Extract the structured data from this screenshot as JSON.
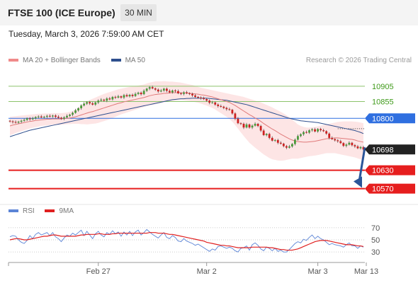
{
  "header": {
    "title": "FTSE 100 (ICE Europe)",
    "timeframe": "30 MIN"
  },
  "timestamp": "Tuesday, March 3, 2026 7:59:00 AM CET",
  "legend": {
    "items": [
      {
        "label": "MA 20 + Bollinger Bands",
        "color": "#f08a8a"
      },
      {
        "label": "MA 50",
        "color": "#2e4f8e"
      }
    ],
    "credit": "Research © 2026 Trading Central"
  },
  "rsi_legend": {
    "items": [
      {
        "label": "RSI",
        "color": "#5b84d6"
      },
      {
        "label": "9MA",
        "color": "#e02020"
      }
    ]
  },
  "chart_data": [
    {
      "type": "candlestick",
      "ylim": [
        10525,
        10965
      ],
      "x_tick_labels": [
        "Feb 27",
        "Mar 2",
        "Mar 3",
        "Mar 13"
      ],
      "x_tick_positions": [
        31,
        69,
        108,
        125
      ],
      "n_bars": 125,
      "levels": [
        {
          "value": 10905,
          "label": "10905",
          "kind": "target",
          "color": "#8cc36b",
          "text_color": "#3f9a1a"
        },
        {
          "value": 10855,
          "label": "10855",
          "kind": "target",
          "color": "#8cc36b",
          "text_color": "#3f9a1a"
        },
        {
          "value": 10800,
          "label": "10800",
          "kind": "pivot",
          "color": "#2f6fe0"
        },
        {
          "value": 10698,
          "label": "10698",
          "kind": "last-price",
          "color": "#222222"
        },
        {
          "value": 10630,
          "label": "10630",
          "kind": "target",
          "color": "#e61e1e"
        },
        {
          "value": 10570,
          "label": "10570",
          "kind": "target",
          "color": "#e61e1e"
        }
      ],
      "forecast_arrow": {
        "from": 10705,
        "to": 10575,
        "color": "#2a5599"
      },
      "close": [
        10790,
        10788,
        10786,
        10789,
        10792,
        10795,
        10800,
        10797,
        10800,
        10804,
        10806,
        10803,
        10805,
        10808,
        10806,
        10809,
        10805,
        10802,
        10799,
        10803,
        10808,
        10812,
        10818,
        10826,
        10833,
        10842,
        10848,
        10853,
        10849,
        10845,
        10852,
        10858,
        10861,
        10858,
        10865,
        10862,
        10870,
        10868,
        10872,
        10868,
        10876,
        10872,
        10877,
        10873,
        10880,
        10884,
        10879,
        10890,
        10897,
        10902,
        10898,
        10894,
        10888,
        10891,
        10897,
        10890,
        10885,
        10891,
        10889,
        10882,
        10880,
        10885,
        10882,
        10880,
        10875,
        10870,
        10868,
        10866,
        10863,
        10858,
        10851,
        10852,
        10845,
        10840,
        10838,
        10834,
        10830,
        10828,
        10816,
        10799,
        10784,
        10782,
        10770,
        10780,
        10770,
        10776,
        10782,
        10775,
        10760,
        10745,
        10749,
        10736,
        10727,
        10729,
        10720,
        10717,
        10709,
        10704,
        10708,
        10716,
        10730,
        10742,
        10748,
        10755,
        10753,
        10761,
        10764,
        10757,
        10765,
        10761,
        10758,
        10750,
        10736,
        10732,
        10728,
        10725,
        10719,
        10710,
        10714,
        10720,
        10712,
        10708,
        10702,
        10706,
        10698
      ],
      "ma20": [
        10775,
        10778,
        10780,
        10782,
        10784,
        10786,
        10788,
        10790,
        10791,
        10793,
        10794,
        10795,
        10796,
        10797,
        10797,
        10798,
        10798,
        10798,
        10798,
        10799,
        10800,
        10801,
        10803,
        10805,
        10808,
        10811,
        10814,
        10817,
        10820,
        10822,
        10825,
        10828,
        10831,
        10834,
        10837,
        10840,
        10843,
        10846,
        10849,
        10851,
        10854,
        10856,
        10858,
        10860,
        10862,
        10864,
        10866,
        10868,
        10871,
        10874,
        10876,
        10878,
        10879,
        10880,
        10882,
        10882,
        10883,
        10884,
        10884,
        10884,
        10884,
        10883,
        10883,
        10882,
        10881,
        10880,
        10879,
        10877,
        10876,
        10874,
        10872,
        10870,
        10867,
        10864,
        10861,
        10858,
        10855,
        10852,
        10847,
        10842,
        10836,
        10830,
        10824,
        10818,
        10812,
        10807,
        10801,
        10796,
        10790,
        10783,
        10777,
        10771,
        10765,
        10760,
        10754,
        10748,
        10743,
        10738,
        10733,
        10729,
        10726,
        10724,
        10723,
        10722,
        10722,
        10723,
        10724,
        10725,
        10727,
        10729,
        10731,
        10733,
        10734,
        10735,
        10736,
        10736,
        10735,
        10734,
        10733,
        10732,
        10731,
        10729,
        10726,
        10724,
        10722
      ],
      "bb_upper": [
        10805,
        10806,
        10807,
        10808,
        10809,
        10810,
        10811,
        10812,
        10813,
        10814,
        10815,
        10815,
        10816,
        10816,
        10816,
        10817,
        10817,
        10817,
        10817,
        10818,
        10819,
        10821,
        10824,
        10829,
        10835,
        10842,
        10849,
        10856,
        10860,
        10864,
        10868,
        10872,
        10876,
        10880,
        10883,
        10886,
        10889,
        10892,
        10895,
        10897,
        10899,
        10901,
        10903,
        10904,
        10906,
        10907,
        10909,
        10911,
        10914,
        10917,
        10919,
        10921,
        10921,
        10921,
        10922,
        10921,
        10920,
        10920,
        10919,
        10918,
        10917,
        10915,
        10913,
        10911,
        10909,
        10906,
        10903,
        10900,
        10898,
        10896,
        10894,
        10892,
        10890,
        10888,
        10886,
        10884,
        10882,
        10880,
        10878,
        10876,
        10874,
        10872,
        10870,
        10867,
        10864,
        10861,
        10858,
        10855,
        10852,
        10848,
        10844,
        10840,
        10836,
        10831,
        10826,
        10821,
        10816,
        10810,
        10804,
        10796,
        10788,
        10780,
        10775,
        10772,
        10770,
        10770,
        10771,
        10772,
        10774,
        10776,
        10778,
        10780,
        10782,
        10784,
        10786,
        10788,
        10789,
        10790,
        10790,
        10790,
        10790,
        10789,
        10788,
        10786,
        10784
      ],
      "bb_lower": [
        10745,
        10748,
        10752,
        10755,
        10758,
        10761,
        10764,
        10767,
        10769,
        10771,
        10773,
        10775,
        10776,
        10777,
        10778,
        10779,
        10779,
        10779,
        10779,
        10780,
        10781,
        10781,
        10782,
        10782,
        10782,
        10781,
        10781,
        10780,
        10781,
        10782,
        10783,
        10785,
        10788,
        10791,
        10794,
        10797,
        10801,
        10805,
        10809,
        10813,
        10816,
        10819,
        10822,
        10825,
        10828,
        10831,
        10834,
        10837,
        10840,
        10842,
        10844,
        10846,
        10848,
        10850,
        10852,
        10854,
        10856,
        10857,
        10858,
        10859,
        10860,
        10859,
        10858,
        10857,
        10855,
        10853,
        10851,
        10848,
        10845,
        10842,
        10838,
        10834,
        10829,
        10823,
        10817,
        10811,
        10805,
        10798,
        10789,
        10778,
        10766,
        10754,
        10742,
        10731,
        10720,
        10712,
        10704,
        10697,
        10689,
        10682,
        10676,
        10670,
        10666,
        10664,
        10662,
        10661,
        10662,
        10664,
        10666,
        10668,
        10668,
        10668,
        10670,
        10672,
        10674,
        10676,
        10677,
        10678,
        10680,
        10682,
        10684,
        10686,
        10686,
        10686,
        10686,
        10684,
        10682,
        10680,
        10678,
        10676,
        10674,
        10672,
        10669,
        10666,
        10664
      ],
      "ma50": [
        10740,
        10743,
        10746,
        10749,
        10752,
        10755,
        10758,
        10761,
        10763,
        10765,
        10767,
        10769,
        10771,
        10773,
        10775,
        10777,
        10779,
        10781,
        10783,
        10785,
        10787,
        10789,
        10791,
        10793,
        10795,
        10797,
        10799,
        10801,
        10803,
        10805,
        10807,
        10809,
        10811,
        10813,
        10815,
        10817,
        10819,
        10821,
        10823,
        10825,
        10827,
        10829,
        10831,
        10833,
        10835,
        10837,
        10839,
        10841,
        10843,
        10845,
        10847,
        10849,
        10851,
        10853,
        10855,
        10857,
        10859,
        10861,
        10862,
        10863,
        10864,
        10864,
        10865,
        10865,
        10866,
        10866,
        10866,
        10866,
        10866,
        10866,
        10865,
        10864,
        10863,
        10862,
        10861,
        10860,
        10859,
        10857,
        10855,
        10853,
        10851,
        10849,
        10847,
        10845,
        10842,
        10839,
        10836,
        10833,
        10830,
        10827,
        10824,
        10821,
        10818,
        10815,
        10812,
        10809,
        10806,
        10803,
        10800,
        10798,
        10796,
        10794,
        10792,
        10791,
        10790,
        10789,
        10788,
        10787,
        10786,
        10784,
        10782,
        10780,
        10778,
        10776,
        10774,
        10772,
        10770,
        10768,
        10766,
        10764,
        10762,
        10760,
        10757,
        10754,
        10750
      ]
    },
    {
      "type": "line",
      "ylim": [
        15,
        85
      ],
      "y_ticks": [
        70,
        50,
        30
      ],
      "series": [
        {
          "name": "RSI",
          "color": "#5b84d6",
          "values": [
            55,
            57,
            56,
            50,
            46,
            44,
            49,
            57,
            52,
            59,
            62,
            58,
            60,
            62,
            57,
            62,
            55,
            52,
            47,
            53,
            58,
            56,
            61,
            58,
            62,
            66,
            57,
            64,
            58,
            52,
            60,
            64,
            58,
            55,
            62,
            59,
            65,
            60,
            63,
            56,
            63,
            58,
            64,
            57,
            63,
            66,
            58,
            62,
            67,
            63,
            59,
            56,
            53,
            58,
            62,
            54,
            52,
            57,
            54,
            48,
            47,
            52,
            48,
            46,
            44,
            41,
            43,
            40,
            37,
            34,
            31,
            35,
            33,
            39,
            40,
            38,
            36,
            38,
            36,
            32,
            30,
            36,
            37,
            40,
            33,
            42,
            45,
            41,
            35,
            32,
            38,
            36,
            32,
            36,
            31,
            33,
            30,
            30,
            34,
            39,
            44,
            47,
            45,
            51,
            49,
            54,
            58,
            52,
            56,
            52,
            50,
            46,
            42,
            44,
            42,
            41,
            40,
            38,
            42,
            45,
            40,
            40,
            36,
            40,
            38
          ]
        },
        {
          "name": "9MA",
          "color": "#e02020",
          "values": [
            50,
            51,
            52,
            52,
            51,
            50,
            50,
            51,
            52,
            53,
            54,
            55,
            56,
            56,
            57,
            58,
            58,
            57,
            56,
            56,
            56,
            56,
            56,
            56,
            57,
            58,
            58,
            59,
            59,
            59,
            59,
            60,
            60,
            59,
            59,
            59,
            60,
            60,
            61,
            61,
            61,
            61,
            61,
            61,
            61,
            61,
            61,
            61,
            61,
            62,
            62,
            62,
            61,
            61,
            61,
            60,
            59,
            59,
            58,
            57,
            56,
            55,
            54,
            53,
            52,
            51,
            50,
            49,
            48,
            46,
            45,
            44,
            43,
            42,
            41,
            41,
            40,
            40,
            39,
            38,
            37,
            37,
            37,
            37,
            37,
            38,
            38,
            38,
            38,
            38,
            38,
            37,
            37,
            36,
            35,
            34,
            34,
            33,
            33,
            33,
            34,
            35,
            37,
            39,
            41,
            43,
            45,
            47,
            48,
            49,
            49,
            49,
            48,
            47,
            46,
            45,
            44,
            43,
            42,
            42,
            42,
            41,
            40,
            40,
            39
          ]
        }
      ]
    }
  ]
}
